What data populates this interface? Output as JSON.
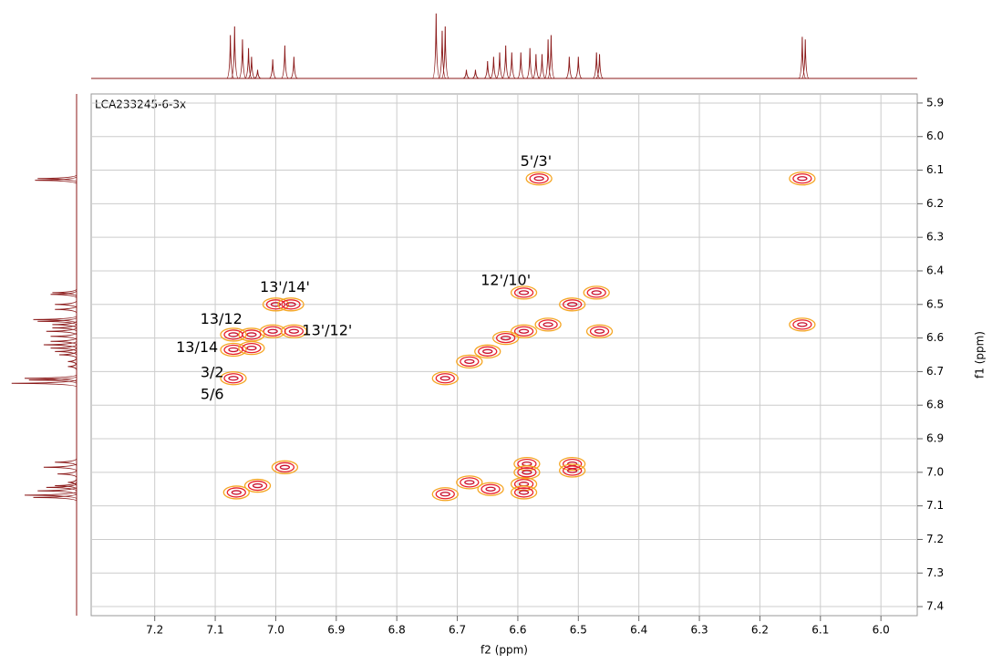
{
  "chart_data": {
    "type": "contour",
    "title": "LCA233245-6-3x",
    "x_label": "f2 (ppm)",
    "y_label": "f1 (ppm)",
    "xlim": [
      7.305,
      5.94
    ],
    "ylim": [
      5.873,
      7.427
    ],
    "xticks": [
      7.2,
      7.1,
      {
        "value": 7,
        "label": "7.0"
      },
      6.9,
      6.8,
      6.7,
      6.6,
      6.5,
      6.4,
      6.3,
      6.2,
      6.1,
      {
        "value": 6,
        "label": "6.0"
      }
    ],
    "yticks": [
      5.9,
      {
        "value": 6,
        "label": "6.0"
      },
      6.1,
      6.2,
      6.3,
      6.4,
      6.5,
      6.6,
      6.7,
      6.8,
      6.9,
      {
        "value": 7,
        "label": "7.0"
      },
      7.1,
      7.2,
      7.3,
      7.4
    ],
    "grid": true,
    "colors": [
      "#f5a623",
      "#e8202a",
      "#c8102e"
    ],
    "projection": {
      "color": "#8b1a1a",
      "ylim": [
        0,
        80
      ],
      "x": [
        7.075,
        7.068,
        7.055,
        7.045,
        7.04,
        7.03,
        7.005,
        6.985,
        6.97,
        6.735,
        6.725,
        6.72,
        6.685,
        6.67,
        6.65,
        6.64,
        6.63,
        6.62,
        6.61,
        6.595,
        6.58,
        6.57,
        6.56,
        6.55,
        6.545,
        6.515,
        6.5,
        6.47,
        6.465,
        6.13,
        6.125
      ],
      "values": [
        50,
        60,
        45,
        35,
        25,
        10,
        22,
        38,
        25,
        75,
        55,
        60,
        10,
        10,
        20,
        25,
        30,
        38,
        30,
        30,
        35,
        28,
        28,
        45,
        50,
        25,
        25,
        30,
        28,
        48,
        45
      ]
    },
    "peaks": {
      "x": [
        6.565,
        6.13,
        6.13,
        6.59,
        6.51,
        6.47,
        6.465,
        7.0,
        6.975,
        7.005,
        6.97,
        7.04,
        7.07,
        7.07,
        7.04,
        7.07,
        6.59,
        6.62,
        6.65,
        6.68,
        6.72,
        6.55,
        7.065,
        7.03,
        6.985,
        6.72,
        6.68,
        6.645,
        6.59,
        6.59,
        6.585,
        6.585,
        6.51,
        6.51
      ],
      "y": [
        6.125,
        6.125,
        6.56,
        6.465,
        6.5,
        6.465,
        6.58,
        6.5,
        6.5,
        6.58,
        6.58,
        6.59,
        6.59,
        6.635,
        6.63,
        6.72,
        6.58,
        6.6,
        6.64,
        6.67,
        6.72,
        6.56,
        7.06,
        7.04,
        6.985,
        7.065,
        7.03,
        7.05,
        7.035,
        7.06,
        6.975,
        7.0,
        6.975,
        6.995
      ]
    },
    "annotations": [
      {
        "text": "5'/3'",
        "x": 6.57,
        "y": 6.075
      },
      {
        "text": "12'/10'",
        "x": 6.62,
        "y": 6.43
      },
      {
        "text": "13'/14'",
        "x": 6.985,
        "y": 6.45
      },
      {
        "text": "13/12",
        "x": 7.09,
        "y": 6.545
      },
      {
        "text": "13'/12'",
        "x": 6.915,
        "y": 6.58
      },
      {
        "text": "13/14",
        "x": 7.13,
        "y": 6.63
      },
      {
        "text": "3/2",
        "x": 7.105,
        "y": 6.705
      },
      {
        "text": "5/6",
        "x": 7.105,
        "y": 6.77
      }
    ]
  }
}
